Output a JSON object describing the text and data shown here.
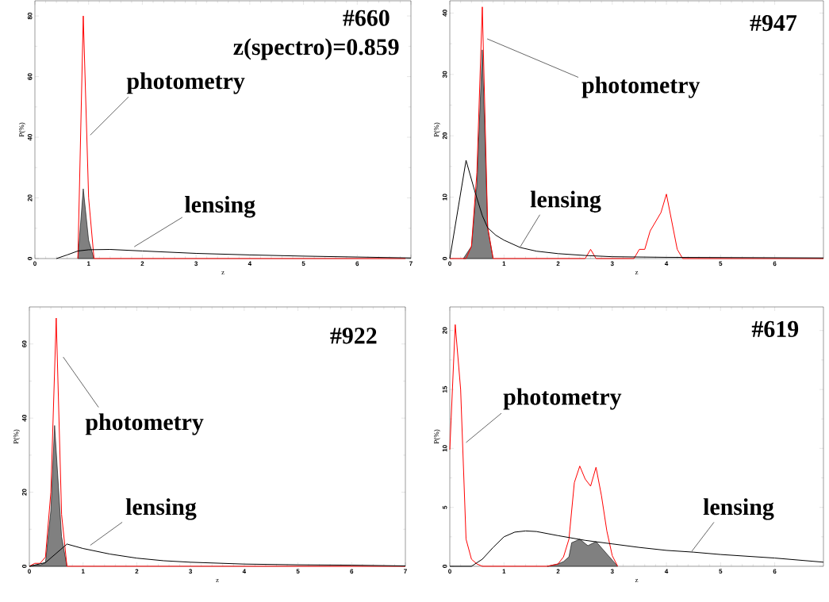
{
  "chart_data": [
    {
      "type": "line",
      "title": "#660",
      "subtitle": "z(spectro)=0.859",
      "xlabel": "z",
      "ylabel": "P(%)",
      "xlim": [
        0,
        7
      ],
      "xticks": [
        0,
        1,
        2,
        3,
        4,
        5,
        6,
        7
      ],
      "ylim": [
        0,
        85
      ],
      "yticks": [
        0,
        20,
        40,
        60,
        80
      ],
      "series": [
        {
          "type": "area",
          "color": "#808080",
          "x": [
            0.8,
            0.9,
            1.0,
            1.1
          ],
          "values": [
            0,
            23,
            6,
            0
          ]
        },
        {
          "type": "line",
          "color": "#ff0000",
          "x": [
            0.8,
            0.9,
            1.0,
            1.1,
            6.9
          ],
          "values": [
            0,
            80,
            20,
            0,
            0
          ]
        },
        {
          "type": "line",
          "color": "#000000",
          "x": [
            0.4,
            0.6,
            0.8,
            1.0,
            1.4,
            2.0,
            3.0,
            4.0,
            5.0,
            6.0,
            7.0
          ],
          "values": [
            0,
            1.2,
            2.5,
            2.9,
            3.0,
            2.5,
            1.7,
            1.2,
            0.8,
            0.5,
            0.2
          ]
        }
      ],
      "annotations": [
        {
          "text": "photometry",
          "x": 1.03,
          "y": 40.7
        },
        {
          "text": "lensing",
          "x": 1.85,
          "y": 3.9
        }
      ]
    },
    {
      "type": "line",
      "title": "#947",
      "xlabel": "z",
      "ylabel": "P(%)",
      "xlim": [
        0,
        6.9
      ],
      "xticks": [
        0,
        1,
        2,
        3,
        4,
        5,
        6
      ],
      "ylim": [
        0,
        42
      ],
      "yticks": [
        0,
        10,
        20,
        30,
        40
      ],
      "series": [
        {
          "type": "area",
          "color": "#808080",
          "x": [
            0.25,
            0.4,
            0.5,
            0.6,
            0.7,
            0.8
          ],
          "values": [
            0,
            2,
            12,
            34,
            5,
            0
          ]
        },
        {
          "type": "line",
          "color": "#ff0000",
          "x": [
            0,
            0.3,
            0.4,
            0.5,
            0.6,
            0.7,
            0.8,
            2.5,
            2.6,
            2.7,
            3.4,
            3.5,
            3.6,
            3.7,
            3.9,
            4.0,
            4.2,
            4.3,
            6.9
          ],
          "values": [
            0,
            0,
            2,
            14,
            41,
            5,
            0,
            0,
            1.5,
            0,
            0,
            1.5,
            1.5,
            4.5,
            7.5,
            10.5,
            1.5,
            0,
            0
          ]
        },
        {
          "color": "#000000",
          "x": [
            0,
            0.3,
            0.46,
            0.6,
            0.7,
            0.85,
            1.0,
            1.3,
            1.6,
            2.0,
            2.5,
            3.0,
            4.0,
            6.9
          ],
          "values": [
            0,
            16,
            11,
            7,
            5,
            3.8,
            3.0,
            1.8,
            1.2,
            0.8,
            0.5,
            0.3,
            0.2,
            0.1
          ]
        }
      ],
      "annotations": [
        {
          "text": "photometry",
          "x": 0.69,
          "y": 35.8
        },
        {
          "text": "lensing",
          "x": 1.3,
          "y": 1.9
        }
      ]
    },
    {
      "type": "line",
      "title": "#922",
      "xlabel": "z",
      "ylabel": "P(%)",
      "xlim": [
        0,
        7
      ],
      "xticks": [
        0,
        1,
        2,
        3,
        4,
        5,
        6,
        7
      ],
      "ylim": [
        0,
        70
      ],
      "yticks": [
        0,
        20,
        40,
        60
      ],
      "series": [
        {
          "type": "area",
          "color": "#808080",
          "x": [
            0,
            0.1,
            0.2,
            0.3,
            0.4,
            0.47,
            0.6,
            0.7
          ],
          "values": [
            0,
            0.3,
            0.3,
            1,
            15,
            38,
            8,
            0
          ]
        },
        {
          "type": "line",
          "color": "#ff0000",
          "x": [
            0,
            0.1,
            0.2,
            0.3,
            0.4,
            0.5,
            0.6,
            0.7,
            7
          ],
          "values": [
            0,
            0.8,
            0.8,
            2.5,
            20,
            67,
            14,
            0,
            0
          ]
        },
        {
          "type": "line",
          "color": "#000000",
          "x": [
            0,
            0.3,
            0.7,
            1.0,
            1.5,
            2.0,
            2.5,
            3.0,
            4.0,
            5.0,
            6.0,
            7.0
          ],
          "values": [
            0,
            1,
            6,
            4.8,
            3.3,
            2.2,
            1.5,
            1.1,
            0.6,
            0.4,
            0.3,
            0.1
          ]
        }
      ],
      "annotations": [
        "photometry",
        "lensing"
      ]
    },
    {
      "type": "line",
      "title": "#619",
      "xlabel": "z",
      "ylabel": "P(%)",
      "xlim": [
        0,
        6.9
      ],
      "xticks": [
        0,
        1,
        2,
        3,
        4,
        5,
        6
      ],
      "ylim": [
        0,
        22
      ],
      "yticks": [
        0,
        5,
        10,
        15,
        20
      ],
      "series": [
        {
          "type": "area",
          "color": "#808080",
          "x": [
            1.8,
            2.0,
            2.1,
            2.2,
            2.25,
            2.4,
            2.55,
            2.7,
            3.1
          ],
          "values": [
            0,
            0.2,
            0.4,
            0.8,
            2.0,
            2.3,
            1.75,
            2.1,
            0
          ]
        },
        {
          "type": "line",
          "color": "#ff0000",
          "x": [
            0,
            0.1,
            0.2,
            0.3,
            0.4,
            0.5,
            0.6,
            1.8,
            2.0,
            2.1,
            2.2,
            2.3,
            2.4,
            2.5,
            2.6,
            2.7,
            2.8,
            2.9,
            3.0,
            3.1
          ],
          "values": [
            9.9,
            20.5,
            15,
            2.3,
            0.6,
            0.2,
            0,
            0,
            0.2,
            0.8,
            2.3,
            7.1,
            8.5,
            7.4,
            6.8,
            8.4,
            6,
            3,
            0.9,
            0
          ]
        },
        {
          "type": "line",
          "color": "#000000",
          "x": [
            0,
            0.4,
            0.6,
            0.8,
            1.0,
            1.2,
            1.4,
            1.6,
            2.0,
            2.5,
            3.0,
            3.5,
            4.0,
            4.5,
            5.0,
            6.0,
            6.9
          ],
          "values": [
            0,
            0,
            0.6,
            1.6,
            2.5,
            2.9,
            3.0,
            2.95,
            2.6,
            2.2,
            1.9,
            1.6,
            1.35,
            1.2,
            1.0,
            0.7,
            0.35
          ]
        }
      ],
      "annotations": [
        {
          "text": "photometry",
          "x": 0.3,
          "y": 10.5
        },
        {
          "text": "lensing",
          "x": 4.47,
          "y": 1.28
        }
      ]
    }
  ]
}
